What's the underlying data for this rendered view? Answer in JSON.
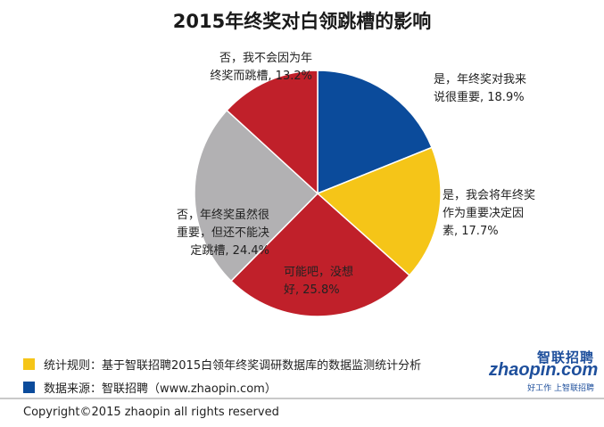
{
  "chart_data": {
    "type": "pie",
    "title": "2015年终奖对白领跳槽的影响",
    "slices": [
      {
        "label": "是，年终奖对我来说很重要",
        "display": "是，年终奖对我来\n说很重要, 18.9%",
        "value": 18.9,
        "color": "#0b4b9b"
      },
      {
        "label": "是，我会将年终奖作为重要决定因素",
        "display": "是，我会将年终奖\n作为重要决定因\n素, 17.7%",
        "value": 17.7,
        "color": "#f5c518"
      },
      {
        "label": "可能吧，没想好",
        "display": "可能吧，没想\n好, 25.8%",
        "value": 25.8,
        "color": "#c0202a"
      },
      {
        "label": "否，年终奖虽然很重要，但还不能决定跳槽",
        "display": "否，年终奖虽然很\n重要，但还不能决\n定跳槽, 24.4%",
        "value": 24.4,
        "color": "#b2b1b3"
      },
      {
        "label": "否，我不会因为年终奖而跳槽",
        "display": "否，我不会因为年\n终奖而跳槽, 13.2%",
        "value": 13.2,
        "color": "#c0202a"
      }
    ]
  },
  "legend": [
    {
      "text": "统计规则：基于智联招聘2015白领年终奖调研数据库的数据监测统计分析",
      "color": "#f5c518"
    },
    {
      "text": "数据来源：智联招聘（www.zhaopin.com）",
      "color": "#0b4b9b"
    }
  ],
  "footer": {
    "copyright": "Copyright©2015 zhaopin all rights reserved"
  },
  "logo": {
    "cn": "智联招聘",
    "en": "zhaopin.com",
    "tagline": "好工作 上智联招聘",
    "icon": "zhaopin-logo-icon"
  }
}
